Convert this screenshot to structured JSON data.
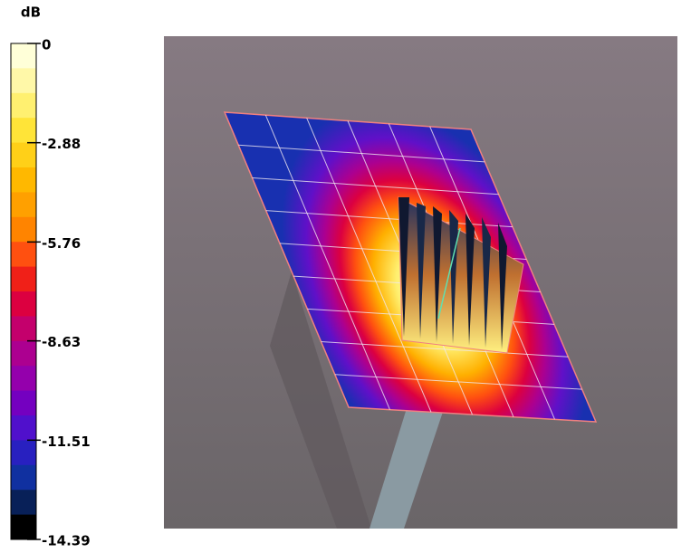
{
  "chart_data": {
    "type": "colorbar",
    "unit": "dB",
    "ylim": [
      -14.39,
      0
    ],
    "yticks": [
      0,
      -2.88,
      -5.76,
      -8.63,
      -11.51,
      -14.39
    ],
    "colors": [
      "#ffffd8",
      "#fff8a8",
      "#fff070",
      "#ffe438",
      "#ffd018",
      "#ffb800",
      "#ffa000",
      "#ff8400",
      "#ff5010",
      "#f02018",
      "#dc0040",
      "#c4006c",
      "#ac0090",
      "#9400ac",
      "#7400c0",
      "#5010cc",
      "#2820c0",
      "#1030a0",
      "#082058",
      "#000000"
    ]
  }
}
